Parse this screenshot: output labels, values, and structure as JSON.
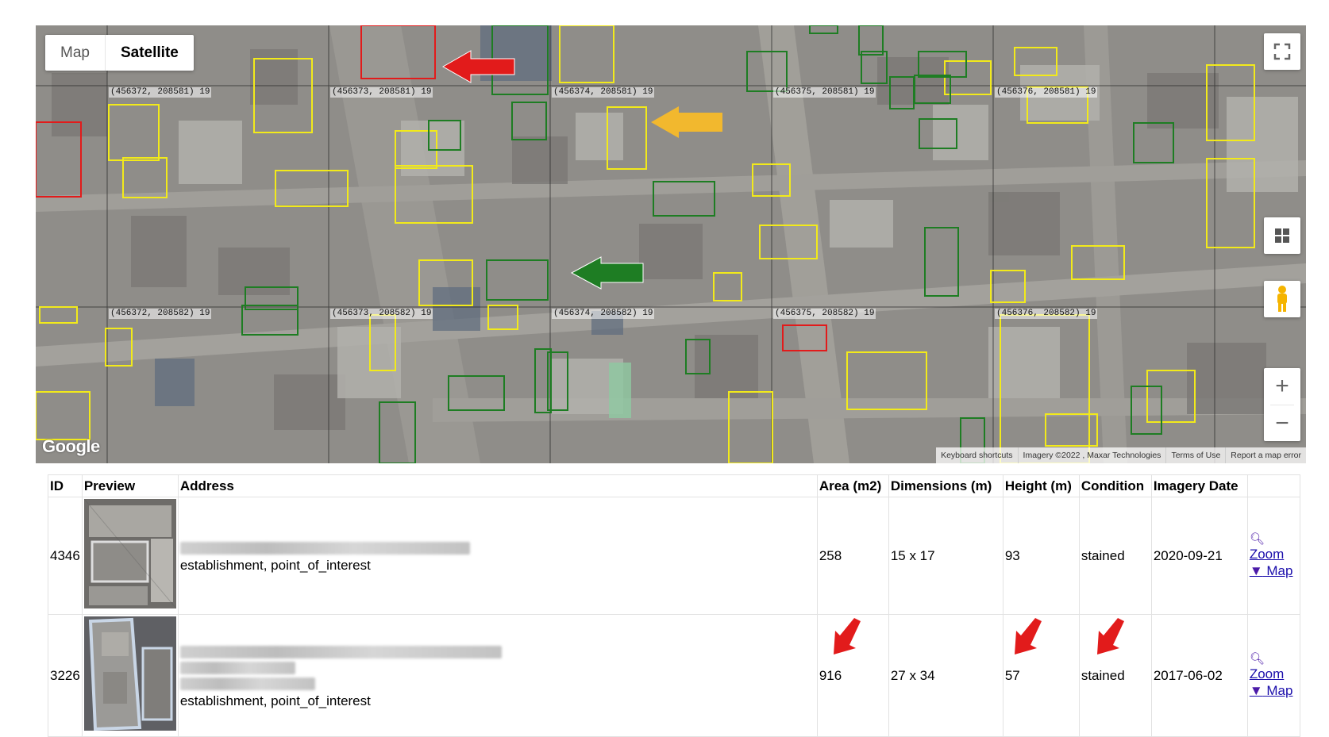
{
  "map": {
    "type_control": {
      "map_label": "Map",
      "satellite_label": "Satellite",
      "selected": "Satellite"
    },
    "grid_labels": [
      "(456372, 208581) 19",
      "(456373, 208581) 19",
      "(456374, 208581) 19",
      "(456375, 208581) 19",
      "(456376, 208581) 19",
      "(456372, 208582) 19",
      "(456373, 208582) 19",
      "(456374, 208582) 19",
      "(456375, 208582) 19",
      "(456376, 208582) 19"
    ],
    "google_logo": "Google",
    "attribution": {
      "keyboard_shortcuts": "Keyboard shortcuts",
      "imagery": "Imagery ©2022 , Maxar Technologies",
      "terms": "Terms of Use",
      "report": "Report a map error"
    },
    "controls": {
      "fullscreen": "fullscreen-icon",
      "layers": "grid-icon",
      "pegman": "pegman-icon",
      "zoom_in": "+",
      "zoom_out": "−"
    },
    "colors": {
      "red": "#e21b1b",
      "yellow": "#f2ea1a",
      "green": "#1e7d23",
      "orange_arrow": "#f2b82e",
      "green_arrow": "#1e7d23"
    },
    "arrows": [
      "red-left-arrow",
      "orange-left-arrow",
      "green-left-arrow"
    ]
  },
  "table": {
    "headers": [
      "ID",
      "Preview",
      "Address",
      "Area (m2)",
      "Dimensions (m)",
      "Height (m)",
      "Condition",
      "Imagery Date",
      ""
    ],
    "rows": [
      {
        "id": "4346",
        "address_type": "establishment, point_of_interest",
        "area": "258",
        "dimensions": "15 x 17",
        "height": "93",
        "condition": "stained",
        "imagery_date": "2020-09-21",
        "zoom_label": "Zoom",
        "map_label": " Map"
      },
      {
        "id": "3226",
        "address_type": "establishment, point_of_interest",
        "area": "916",
        "dimensions": "27 x 34",
        "height": "57",
        "condition": "stained",
        "imagery_date": "2017-06-02",
        "zoom_label": "Zoom",
        "map_label": " Map"
      }
    ]
  }
}
